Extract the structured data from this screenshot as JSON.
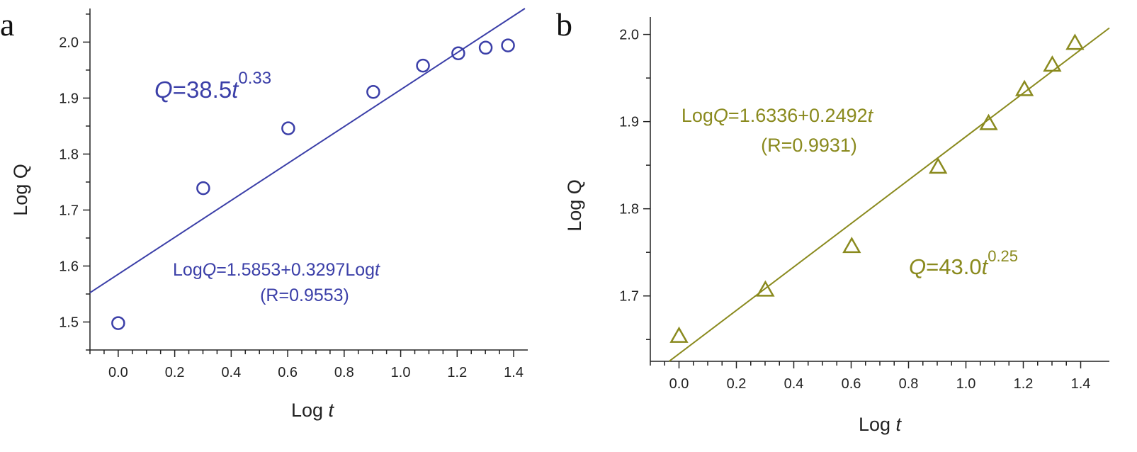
{
  "chart_data": [
    {
      "panel_label": "a",
      "type": "scatter",
      "xlabel": "Log t",
      "xlabel_parts": [
        "Log ",
        "t"
      ],
      "ylabel": "Log Q",
      "xlim": [
        -0.1,
        1.45
      ],
      "ylim": [
        1.45,
        2.06
      ],
      "xticks": [
        0.0,
        0.2,
        0.4,
        0.6,
        0.8,
        1.0,
        1.2,
        1.4
      ],
      "xtick_labels": [
        "0.0",
        "0.2",
        "0.4",
        "0.6",
        "0.8",
        "1.0",
        "1.2",
        "1.4"
      ],
      "yticks": [
        1.5,
        1.6,
        1.7,
        1.8,
        1.9,
        2.0
      ],
      "ytick_labels": [
        "1.5",
        "1.6",
        "1.7",
        "1.8",
        "1.9",
        "2.0"
      ],
      "marker": "circle",
      "color": "#3b3fa8",
      "x": [
        0.0,
        0.301,
        0.602,
        0.903,
        1.079,
        1.204,
        1.301,
        1.38
      ],
      "y": [
        1.498,
        1.739,
        1.846,
        1.911,
        1.958,
        1.98,
        1.99,
        1.994
      ],
      "fit": {
        "intercept": 1.5853,
        "slope": 0.3297
      },
      "annotations": {
        "power_law": {
          "parts": [
            "Q",
            "=38.5",
            "t"
          ],
          "exponent": "0.33"
        },
        "fit_equation": {
          "parts": [
            "Log",
            "Q",
            "=1.5853+0.3297Log",
            "t"
          ]
        },
        "r_value": "(R=0.9553)"
      }
    },
    {
      "panel_label": "b",
      "type": "scatter",
      "xlabel": "Log t",
      "xlabel_parts": [
        "Log ",
        "t"
      ],
      "ylabel": "Log Q",
      "xlim": [
        -0.1,
        1.5
      ],
      "ylim": [
        1.625,
        2.02
      ],
      "xticks": [
        0.0,
        0.2,
        0.4,
        0.6,
        0.8,
        1.0,
        1.2,
        1.4
      ],
      "xtick_labels": [
        "0.0",
        "0.2",
        "0.4",
        "0.6",
        "0.8",
        "1.0",
        "1.2",
        "1.4"
      ],
      "yticks": [
        1.7,
        1.8,
        1.9,
        2.0
      ],
      "ytick_labels": [
        "1.7",
        "1.8",
        "1.9",
        "2.0"
      ],
      "marker": "triangle",
      "color": "#8a8a1e",
      "x": [
        0.0,
        0.301,
        0.602,
        0.903,
        1.079,
        1.204,
        1.301,
        1.38
      ],
      "y": [
        1.654,
        1.707,
        1.757,
        1.848,
        1.898,
        1.937,
        1.965,
        1.99
      ],
      "fit": {
        "intercept": 1.6336,
        "slope": 0.2492
      },
      "annotations": {
        "fit_equation": {
          "parts": [
            "Log",
            "Q",
            "=1.6336+0.2492",
            "t"
          ]
        },
        "r_value": "(R=0.9931)",
        "power_law": {
          "parts": [
            "Q",
            "=43.0",
            "t"
          ],
          "exponent": "0.25"
        }
      }
    }
  ]
}
